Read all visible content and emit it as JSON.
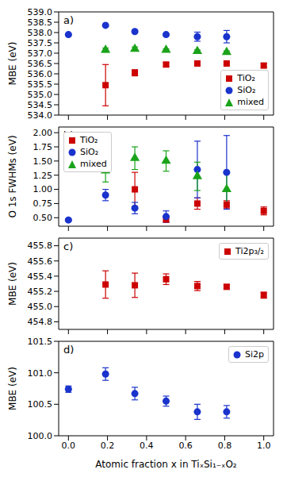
{
  "chart_data": [
    {
      "type": "scatter",
      "title": "a)",
      "x": [
        0,
        0.19,
        0.34,
        0.5,
        0.66,
        0.81,
        1.0
      ],
      "xlim": [
        -0.05,
        1.05
      ],
      "xticks": [
        {
          "value": 0,
          "label": "0.0"
        },
        0.2,
        0.4,
        0.6,
        0.8,
        {
          "value": 1,
          "label": "1.0"
        }
      ],
      "ylabel": "MBE (eV)",
      "ylim": [
        534.0,
        539.0
      ],
      "yticks": [
        {
          "value": 534,
          "label": "534.0"
        },
        534.5,
        {
          "value": 535,
          "label": "535.0"
        },
        535.5,
        {
          "value": 536,
          "label": "536.0"
        },
        536.5,
        {
          "value": 537,
          "label": "537.0"
        },
        537.5,
        {
          "value": 538,
          "label": "538.0"
        },
        538.5,
        {
          "value": 539,
          "label": "539.0"
        }
      ],
      "tick_labels": "y",
      "legend": "lower right",
      "series": [
        {
          "name": "TiO₂",
          "color": "#cc0000",
          "marker": "square",
          "values": [
            null,
            535.45,
            536.05,
            536.45,
            536.5,
            536.5,
            536.4
          ],
          "errors": [
            null,
            1.0,
            0.15,
            0.08,
            0.08,
            0.06,
            0.1
          ]
        },
        {
          "name": "SiO₂",
          "color": "#1a33cc",
          "marker": "circle",
          "values": [
            537.9,
            538.35,
            538.05,
            537.9,
            537.8,
            537.8,
            null
          ],
          "errors": [
            0.05,
            0.05,
            0.05,
            0.05,
            0.22,
            0.3,
            null
          ]
        },
        {
          "name": "mixed",
          "color": "#1aa31a",
          "marker": "triangle",
          "values": [
            null,
            537.15,
            537.2,
            537.15,
            537.1,
            537.05,
            null
          ],
          "errors": [
            null,
            0.1,
            0.1,
            0.06,
            0.06,
            0.06,
            null
          ]
        }
      ]
    },
    {
      "type": "scatter",
      "title": "b)",
      "x": [
        0,
        0.19,
        0.34,
        0.5,
        0.66,
        0.81,
        1.0
      ],
      "xlim": [
        -0.05,
        1.05
      ],
      "xticks": [
        {
          "value": 0,
          "label": "0.0"
        },
        0.2,
        0.4,
        0.6,
        0.8,
        {
          "value": 1,
          "label": "1.0"
        }
      ],
      "ylabel": "O 1s FWHMs (eV)",
      "ylim": [
        0.35,
        2.1
      ],
      "yticks": [
        {
          "value": 0.5,
          "label": "0.50"
        },
        0.75,
        {
          "value": 1,
          "label": "1.00"
        },
        1.25,
        {
          "value": 1.5,
          "label": "1.50"
        },
        1.75,
        {
          "value": 2,
          "label": "2.00"
        }
      ],
      "tick_labels": "y",
      "legend": "upper left",
      "series": [
        {
          "name": "TiO₂",
          "color": "#cc0000",
          "marker": "square",
          "values": [
            null,
            null,
            1.0,
            0.47,
            0.75,
            0.73,
            0.62
          ],
          "errors": [
            null,
            null,
            0.3,
            0.05,
            0.1,
            0.07,
            0.07
          ]
        },
        {
          "name": "SiO₂",
          "color": "#1a33cc",
          "marker": "circle",
          "values": [
            0.46,
            0.9,
            0.67,
            0.52,
            1.35,
            1.3,
            null
          ],
          "errors": [
            0.02,
            0.1,
            0.1,
            0.1,
            0.5,
            0.65,
            null
          ]
        },
        {
          "name": "mixed",
          "color": "#1aa31a",
          "marker": "triangle",
          "values": [
            null,
            1.33,
            1.55,
            1.5,
            1.23,
            1.0,
            null
          ],
          "errors": [
            null,
            0.2,
            0.2,
            0.18,
            0.25,
            0.3,
            null
          ]
        }
      ]
    },
    {
      "type": "scatter",
      "title": "c)",
      "x": [
        0,
        0.19,
        0.34,
        0.5,
        0.66,
        0.81,
        1.0
      ],
      "xlim": [
        -0.05,
        1.05
      ],
      "xticks": [
        {
          "value": 0,
          "label": "0.0"
        },
        0.2,
        0.4,
        0.6,
        0.8,
        {
          "value": 1,
          "label": "1.0"
        }
      ],
      "ylabel": "MBE (eV)",
      "ylim": [
        454.7,
        455.9
      ],
      "yticks": [
        454.8,
        {
          "value": 455,
          "label": "455.0"
        },
        455.2,
        455.4,
        455.6,
        455.8
      ],
      "tick_labels": "y",
      "legend": "upper right",
      "series": [
        {
          "name": "Ti2p₃/₂",
          "color": "#cc0000",
          "marker": "square",
          "values": [
            null,
            455.29,
            455.28,
            455.36,
            455.27,
            455.26,
            455.15
          ],
          "errors": [
            null,
            0.18,
            0.16,
            0.07,
            0.06,
            0.03,
            0.04
          ]
        }
      ]
    },
    {
      "type": "scatter",
      "title": "d)",
      "x": [
        0,
        0.19,
        0.34,
        0.5,
        0.66,
        0.81,
        1.0
      ],
      "xlabel": "Atomic fraction x in TiₓSi₁₋ₓO₂",
      "xlim": [
        -0.05,
        1.05
      ],
      "xticks": [
        {
          "value": 0,
          "label": "0.0"
        },
        0.2,
        0.4,
        0.6,
        0.8,
        {
          "value": 1,
          "label": "1.0"
        }
      ],
      "ylabel": "MBE (eV)",
      "ylim": [
        100.0,
        101.5
      ],
      "yticks": [
        {
          "value": 100,
          "label": "100.0"
        },
        100.5,
        {
          "value": 101,
          "label": "101.0"
        },
        101.5
      ],
      "legend": "upper right",
      "series": [
        {
          "name": "Si2p",
          "color": "#1a33cc",
          "marker": "circle",
          "values": [
            100.74,
            100.98,
            100.67,
            100.55,
            100.38,
            100.38,
            null
          ],
          "errors": [
            0.05,
            0.1,
            0.1,
            0.08,
            0.12,
            0.1,
            null
          ]
        }
      ]
    }
  ]
}
